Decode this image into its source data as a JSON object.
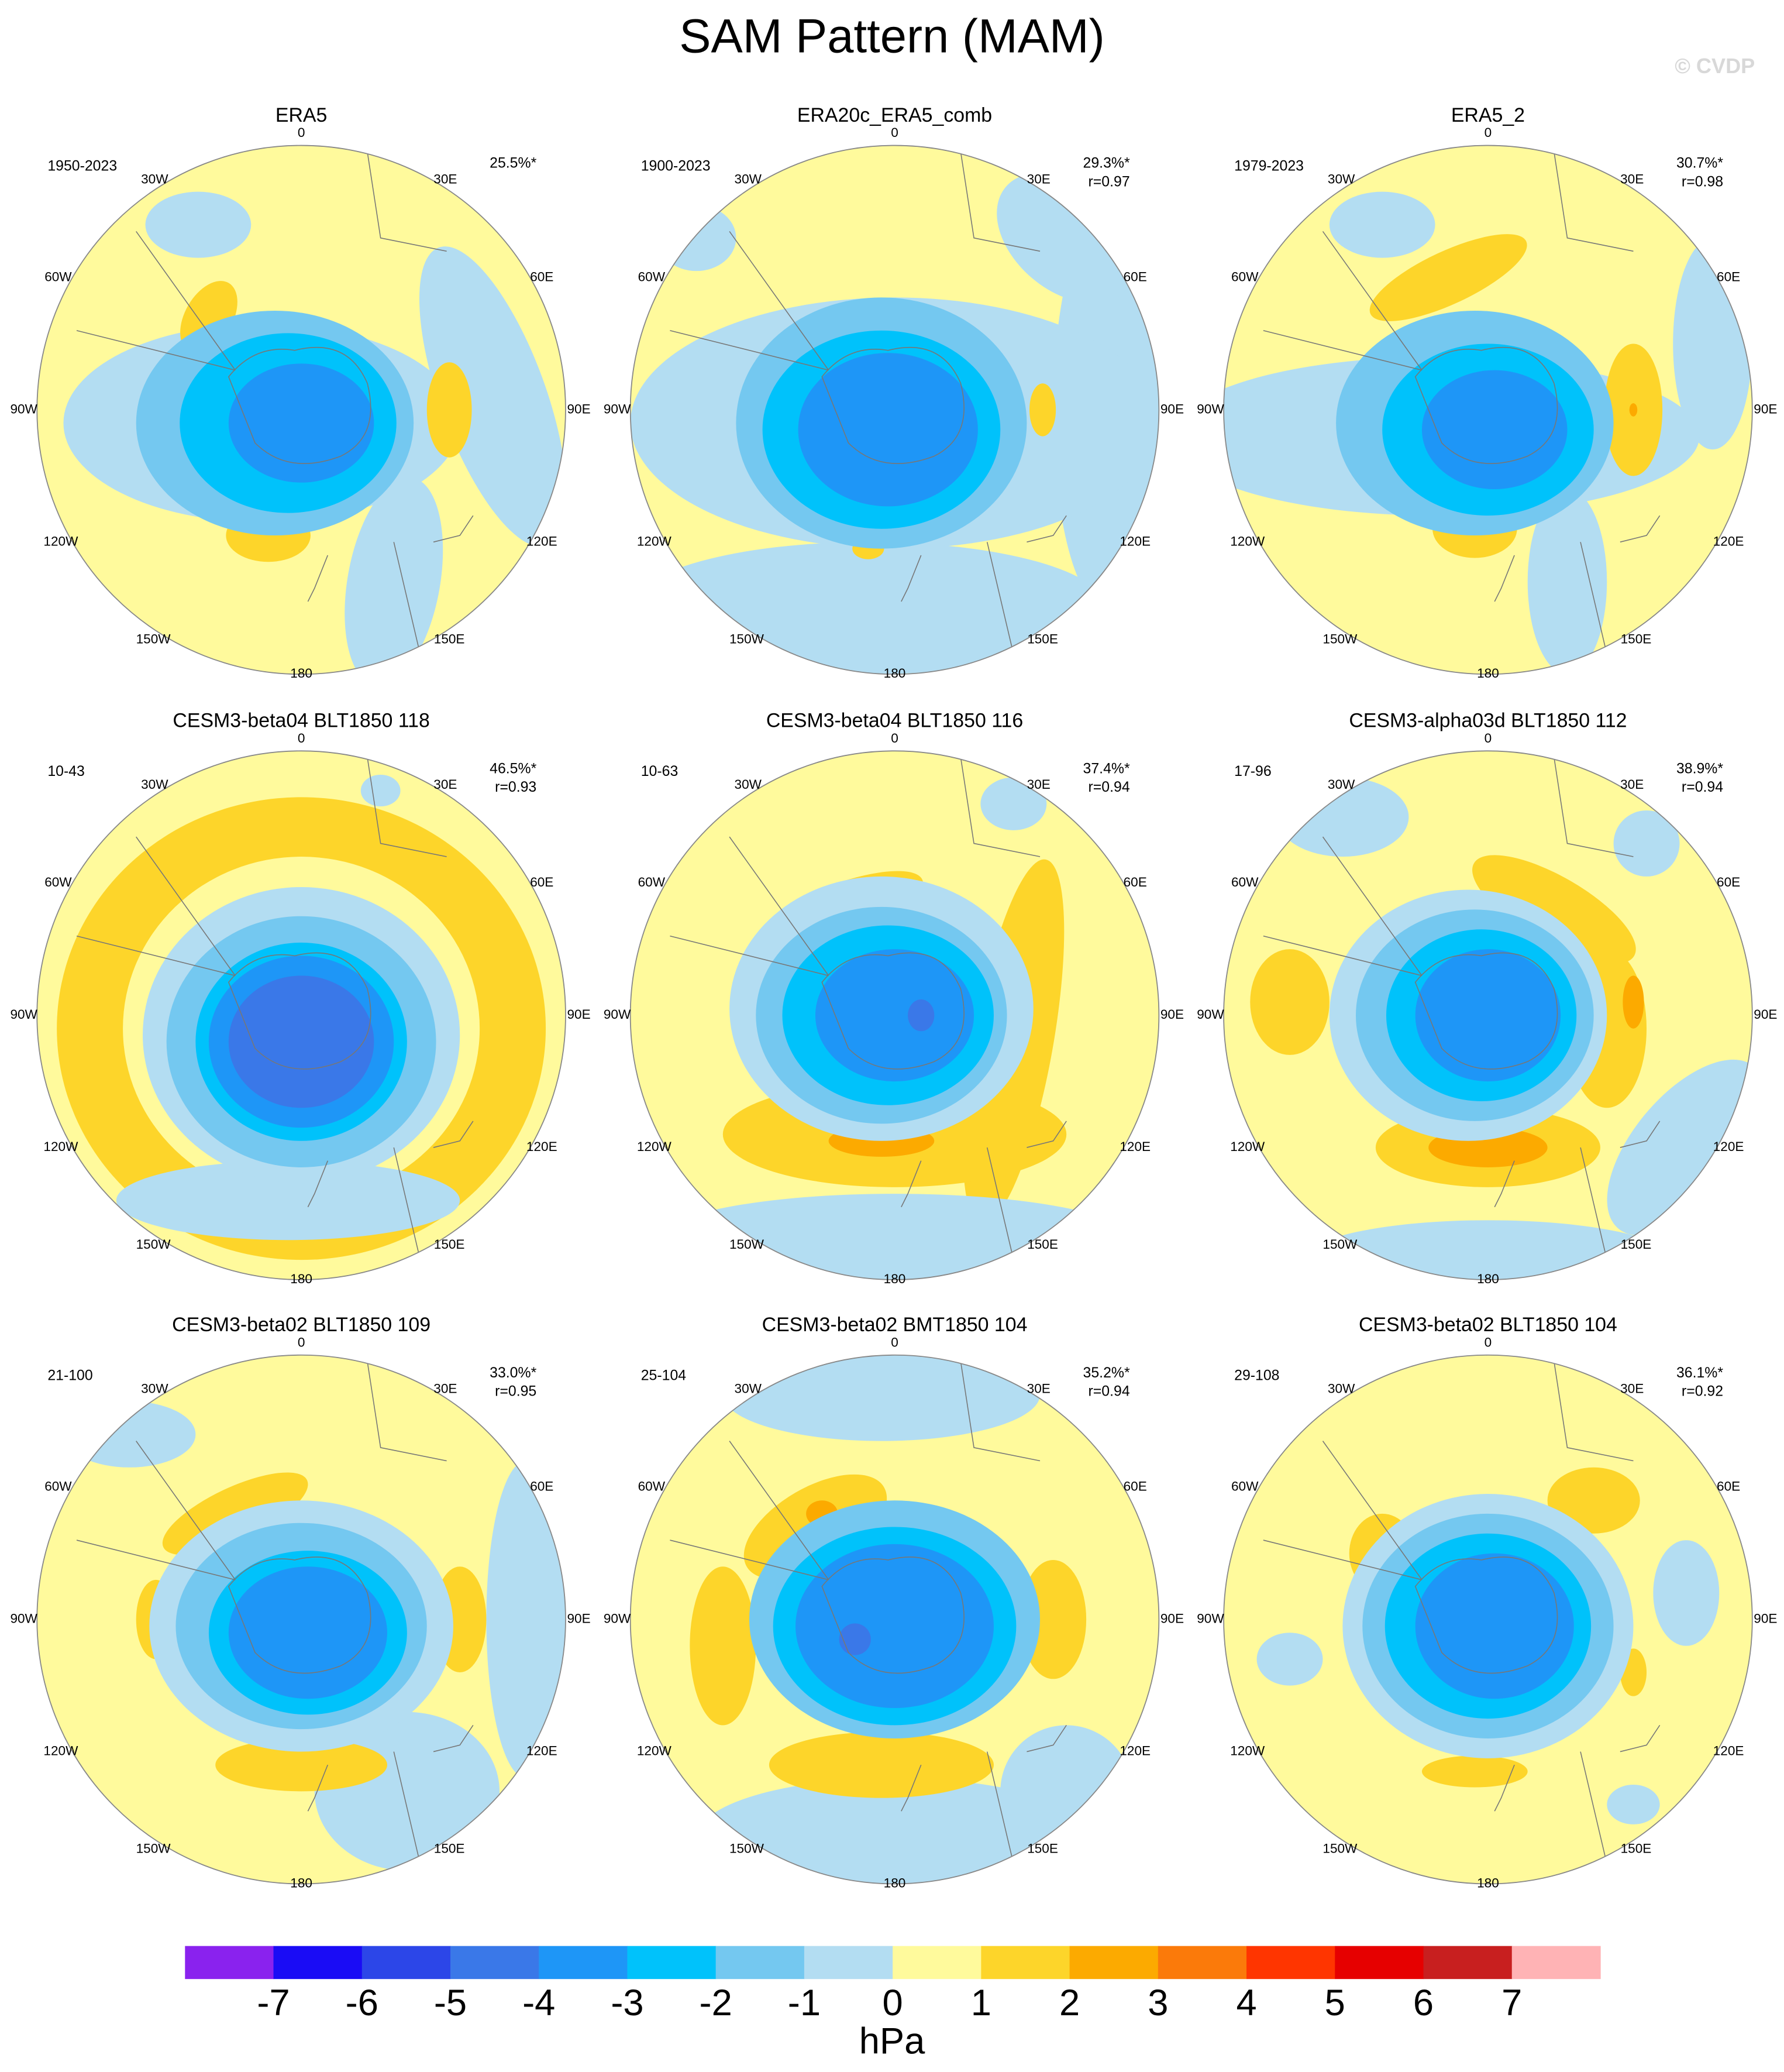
{
  "chart_data": {
    "type": "contour-map",
    "title": "SAM Pattern (MAM)",
    "watermark": "© CVDP",
    "lon_labels": [
      "0",
      "30E",
      "60E",
      "90E",
      "120E",
      "150E",
      "180",
      "150W",
      "120W",
      "90W",
      "60W",
      "30W"
    ],
    "panels": [
      {
        "title": "ERA5",
        "years": "1950-2023",
        "pct": "25.5%*"
      },
      {
        "title": "ERA20c_ERA5_comb",
        "years": "1900-2023",
        "pct": "29.3%*",
        "r": "r=0.97"
      },
      {
        "title": "ERA5_2",
        "years": "1979-2023",
        "pct": "30.7%*",
        "r": "r=0.98"
      },
      {
        "title": "CESM3-beta04 BLT1850 118",
        "years": "10-43",
        "pct": "46.5%*",
        "r": "r=0.93"
      },
      {
        "title": "CESM3-beta04 BLT1850 116",
        "years": "10-63",
        "pct": "37.4%*",
        "r": "r=0.94"
      },
      {
        "title": "CESM3-alpha03d BLT1850 112",
        "years": "17-96",
        "pct": "38.9%*",
        "r": "r=0.94"
      },
      {
        "title": "CESM3-beta02 BLT1850 109",
        "years": "21-100",
        "pct": "33.0%*",
        "r": "r=0.95"
      },
      {
        "title": "CESM3-beta02 BMT1850 104",
        "years": "25-104",
        "pct": "35.2%*",
        "r": "r=0.94"
      },
      {
        "title": "CESM3-beta02 BLT1850 104",
        "years": "29-108",
        "pct": "36.1%*",
        "r": "r=0.92"
      }
    ],
    "colorbar": {
      "colors": [
        "#8a22ee",
        "#1a0cf5",
        "#2c46e8",
        "#3a78e8",
        "#1e96f7",
        "#00c2fb",
        "#74c8f0",
        "#b3ddf2",
        "#fffa9c",
        "#fdd52a",
        "#fcaa00",
        "#fb7a0a",
        "#ff3500",
        "#e60000",
        "#c81f1f",
        "#ffb3b5"
      ],
      "ticks": [
        -7,
        -6,
        -5,
        -4,
        -3,
        -2,
        -1,
        0,
        1,
        2,
        3,
        4,
        5,
        6,
        7
      ],
      "label": "hPa"
    }
  }
}
